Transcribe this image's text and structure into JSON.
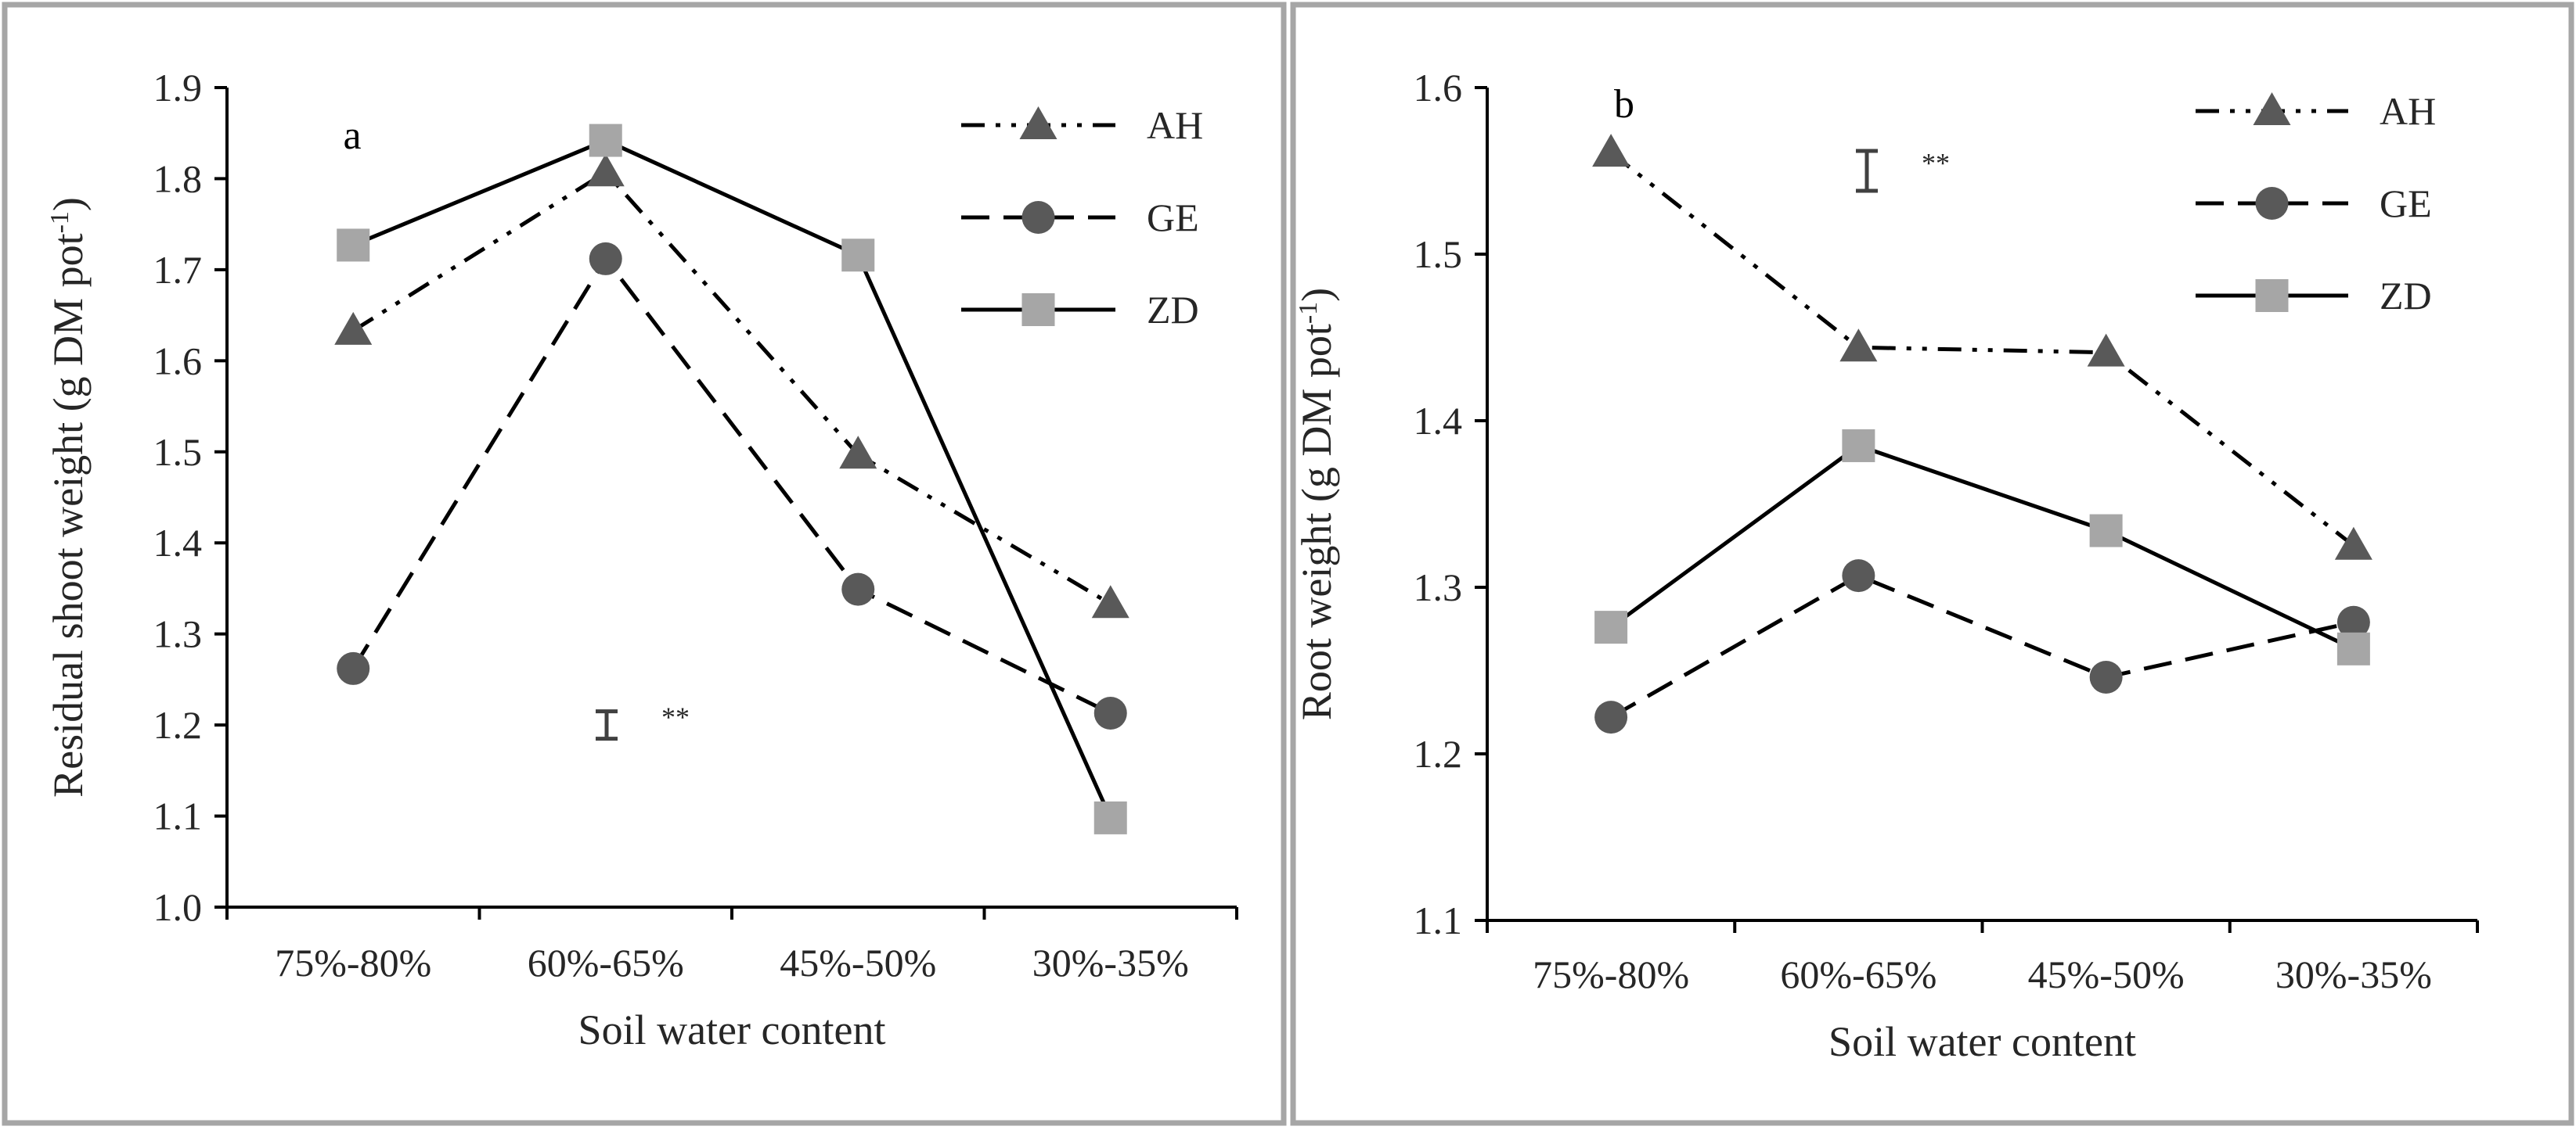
{
  "chart_data": [
    {
      "type": "line",
      "panel_label": "a",
      "title": "",
      "xlabel": "Soil water content",
      "ylabel_main": "Residual shoot weight (g DM pot",
      "ylabel_sup": "-1",
      "ylabel_end": ")",
      "categories": [
        "75%-80%",
        "60%-65%",
        "45%-50%",
        "30%-35%"
      ],
      "ylim": [
        1.0,
        1.9
      ],
      "yticks": [
        "1.0",
        "1.1",
        "1.2",
        "1.3",
        "1.4",
        "1.5",
        "1.6",
        "1.7",
        "1.8",
        "1.9"
      ],
      "series": [
        {
          "name": "AH",
          "values": [
            1.633,
            1.807,
            1.497,
            1.333
          ],
          "marker": "triangle",
          "dash": "dashdotdot",
          "color": "#595959"
        },
        {
          "name": "GE",
          "values": [
            1.262,
            1.712,
            1.349,
            1.213
          ],
          "marker": "circle",
          "dash": "dashed",
          "color": "#595959"
        },
        {
          "name": "ZD",
          "values": [
            1.727,
            1.842,
            1.716,
            1.098
          ],
          "marker": "square",
          "dash": "solid",
          "color": "#a6a6a6"
        }
      ],
      "error_bar": {
        "center": 1.2,
        "half_range": 0.015,
        "label": "**"
      },
      "legend": "top-right",
      "grid": false
    },
    {
      "type": "line",
      "panel_label": "b",
      "title": "",
      "xlabel": "Soil water content",
      "ylabel_main": "Root weight (g DM pot",
      "ylabel_sup": "-1",
      "ylabel_end": ")",
      "categories": [
        "75%-80%",
        "60%-65%",
        "45%-50%",
        "30%-35%"
      ],
      "ylim": [
        1.1,
        1.6
      ],
      "yticks": [
        "1.1",
        "1.2",
        "1.3",
        "1.4",
        "1.5",
        "1.6"
      ],
      "series": [
        {
          "name": "AH",
          "values": [
            1.561,
            1.444,
            1.441,
            1.325
          ],
          "marker": "triangle",
          "dash": "dashdotdot",
          "color": "#595959"
        },
        {
          "name": "GE",
          "values": [
            1.222,
            1.307,
            1.246,
            1.279
          ],
          "marker": "circle",
          "dash": "dashed",
          "color": "#595959"
        },
        {
          "name": "ZD",
          "values": [
            1.276,
            1.385,
            1.334,
            1.263
          ],
          "marker": "square",
          "dash": "solid",
          "color": "#a6a6a6"
        }
      ],
      "error_bar": {
        "center": 1.55,
        "half_range": 0.012,
        "label": "**"
      },
      "legend": "top-right",
      "grid": false
    }
  ]
}
